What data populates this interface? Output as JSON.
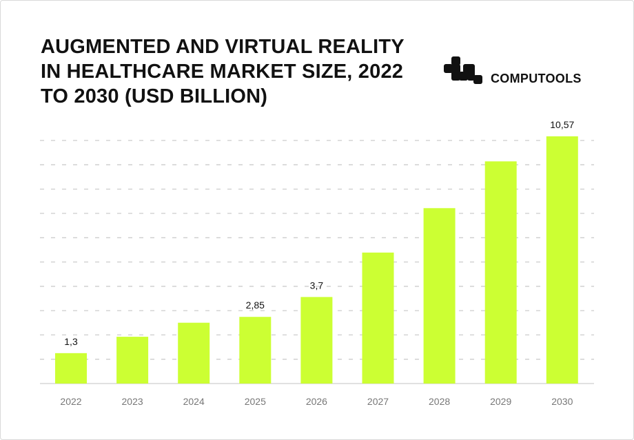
{
  "title": "AUGMENTED AND VIRTUAL REALITY IN HEALTHCARE MARKET SIZE, 2022 TO 2030 (USD BILLION)",
  "brand": {
    "name": "COMPUTOOLS",
    "icon": "computools-logo-icon"
  },
  "chart_data": {
    "type": "bar",
    "title": "AUGMENTED AND VIRTUAL REALITY IN HEALTHCARE MARKET SIZE, 2022 TO 2030 (USD BILLION)",
    "categories": [
      "2022",
      "2023",
      "2024",
      "2025",
      "2026",
      "2027",
      "2028",
      "2029",
      "2030"
    ],
    "values": [
      1.3,
      2.0,
      2.6,
      2.85,
      3.7,
      5.6,
      7.5,
      9.5,
      10.57
    ],
    "data_labels": [
      "1,3",
      "",
      "",
      "2,85",
      "3,7",
      "",
      "",
      "",
      "10,57"
    ],
    "xlabel": "",
    "ylabel": "",
    "ylim": [
      0,
      10.57
    ],
    "grid": "horizontal dashed",
    "bar_color": "#ccff33",
    "grid_color": "#cccccc"
  }
}
